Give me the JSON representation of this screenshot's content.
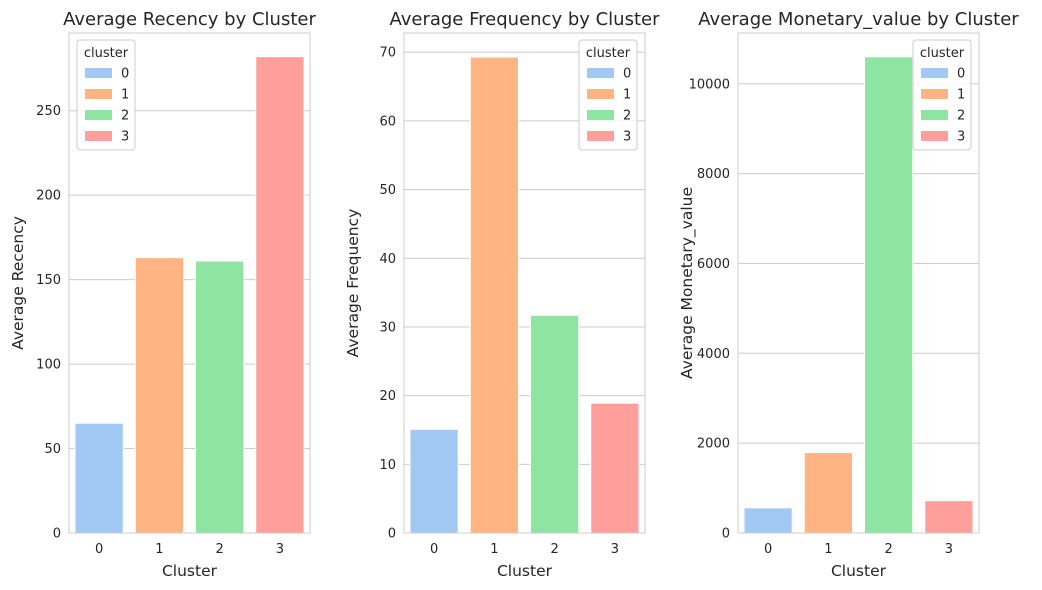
{
  "colors": {
    "cluster_colors": [
      "#a1c9f4",
      "#ffb482",
      "#8de5a1",
      "#ff9f9b"
    ],
    "grid": "#cccccc",
    "text": "#262626"
  },
  "chart_data": [
    {
      "type": "bar",
      "title": "Average Recency by Cluster",
      "xlabel": "Cluster",
      "ylabel": "Average Recency",
      "categories": [
        "0",
        "1",
        "2",
        "3"
      ],
      "values": [
        65,
        163,
        161,
        282
      ],
      "ylim": [
        0,
        296
      ],
      "yticks": [
        0,
        50,
        100,
        150,
        200,
        250
      ],
      "grid": true,
      "legend": {
        "title": "cluster",
        "entries": [
          "0",
          "1",
          "2",
          "3"
        ],
        "placement": "top-left"
      }
    },
    {
      "type": "bar",
      "title": "Average Frequency by Cluster",
      "xlabel": "Cluster",
      "ylabel": "Average Frequency",
      "categories": [
        "0",
        "1",
        "2",
        "3"
      ],
      "values": [
        15.1,
        69.3,
        31.7,
        18.9
      ],
      "ylim": [
        0,
        72.8
      ],
      "yticks": [
        0,
        10,
        20,
        30,
        40,
        50,
        60,
        70
      ],
      "grid": true,
      "legend": {
        "title": "cluster",
        "entries": [
          "0",
          "1",
          "2",
          "3"
        ],
        "placement": "top-right"
      }
    },
    {
      "type": "bar",
      "title": "Average Monetary_value by Cluster",
      "xlabel": "Cluster",
      "ylabel": "Average Monetary_value",
      "categories": [
        "0",
        "1",
        "2",
        "3"
      ],
      "values": [
        560,
        1790,
        10600,
        720
      ],
      "ylim": [
        0,
        11130
      ],
      "yticks": [
        0,
        2000,
        4000,
        6000,
        8000,
        10000
      ],
      "grid": true,
      "legend": {
        "title": "cluster",
        "entries": [
          "0",
          "1",
          "2",
          "3"
        ],
        "placement": "top-right"
      }
    }
  ]
}
